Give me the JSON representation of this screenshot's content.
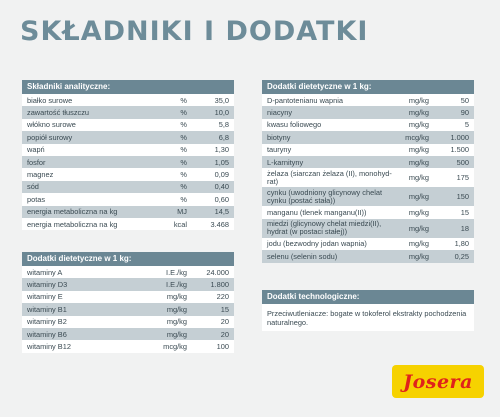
{
  "title": "Składniki i dodatki",
  "analytical": {
    "header": "Składniki analityczne:",
    "rows": [
      {
        "name": "białko surowe",
        "unit": "%",
        "value": "35,0"
      },
      {
        "name": "zawartość tłuszczu",
        "unit": "%",
        "value": "10,0"
      },
      {
        "name": "włókno surowe",
        "unit": "%",
        "value": "5,8"
      },
      {
        "name": "popiół surowy",
        "unit": "%",
        "value": "6,8"
      },
      {
        "name": "wapń",
        "unit": "%",
        "value": "1,30"
      },
      {
        "name": "fosfor",
        "unit": "%",
        "value": "1,05"
      },
      {
        "name": "magnez",
        "unit": "%",
        "value": "0,09"
      },
      {
        "name": "sód",
        "unit": "%",
        "value": "0,40"
      },
      {
        "name": "potas",
        "unit": "%",
        "value": "0,60"
      },
      {
        "name": "energia metaboliczna na kg",
        "unit": "MJ",
        "value": "14,5"
      },
      {
        "name": "energia metaboliczna na kg",
        "unit": "kcal",
        "value": "3.468"
      }
    ]
  },
  "vitamins": {
    "header": "Dodatki dietetyczne w 1 kg:",
    "rows": [
      {
        "name": "witaminy A",
        "unit": "I.E./kg",
        "value": "24.000"
      },
      {
        "name": "witaminy D3",
        "unit": "I.E./kg",
        "value": "1.800"
      },
      {
        "name": "witaminy E",
        "unit": "mg/kg",
        "value": "220"
      },
      {
        "name": "witaminy B1",
        "unit": "mg/kg",
        "value": "15"
      },
      {
        "name": "witaminy B2",
        "unit": "mg/kg",
        "value": "20"
      },
      {
        "name": "witaminy B6",
        "unit": "mg/kg",
        "value": "20"
      },
      {
        "name": "witaminy B12",
        "unit": "mcg/kg",
        "value": "100"
      }
    ]
  },
  "additives": {
    "header": "Dodatki dietetyczne w 1 kg:",
    "rows": [
      {
        "name": "D-pantotenianu wapnia",
        "unit": "mg/kg",
        "value": "50"
      },
      {
        "name": "niacyny",
        "unit": "mg/kg",
        "value": "90"
      },
      {
        "name": "kwasu foliowego",
        "unit": "mg/kg",
        "value": "5"
      },
      {
        "name": "biotyny",
        "unit": "mcg/kg",
        "value": "1.000"
      },
      {
        "name": "tauryny",
        "unit": "mg/kg",
        "value": "1.500"
      },
      {
        "name": "L-karnityny",
        "unit": "mg/kg",
        "value": "500"
      },
      {
        "name": "żelaza (siarczan żelaza (II), monohyd-rat)",
        "unit": "mg/kg",
        "value": "175",
        "tall": true
      },
      {
        "name": "cynku (uwodniony glicynowy chelat cynku (postać stała))",
        "unit": "mg/kg",
        "value": "150",
        "tall": true
      },
      {
        "name": "manganu (tlenek manganu(II))",
        "unit": "mg/kg",
        "value": "15"
      },
      {
        "name": "miedzi (glicynowy chelat miedzi(II), hydrat (w postaci stałej))",
        "unit": "mg/kg",
        "value": "18",
        "tall": true
      },
      {
        "name": "jodu (bezwodny jodan wapnia)",
        "unit": "mg/kg",
        "value": "1,80"
      },
      {
        "name": "selenu (selenin sodu)",
        "unit": "mg/kg",
        "value": "0,25"
      }
    ]
  },
  "technological": {
    "header": "Dodatki technologiczne:",
    "text": "Przeciwutleniacze: bogate w tokoferol ekstrakty pochodzenia naturalnego."
  },
  "logo": {
    "text": "Josera"
  },
  "colors": {
    "header_bg": "#6b8794",
    "alt_row": "#c5cfd4",
    "title": "#6d8c99",
    "logo_bg": "#f6d200",
    "logo_text": "#e0221b"
  }
}
